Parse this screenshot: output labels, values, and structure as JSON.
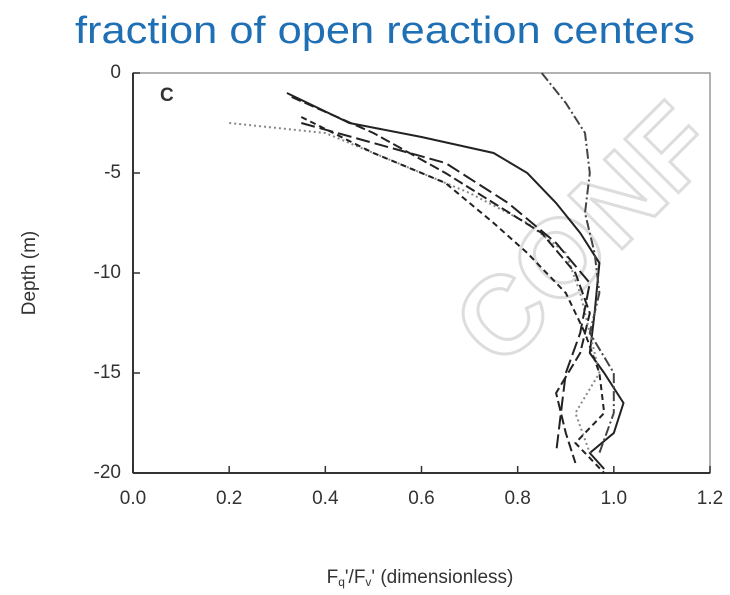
{
  "chart_data": {
    "type": "line",
    "title": "fraction of open reaction centers",
    "panel_label": "C",
    "watermark": "CONF",
    "x_label_parts": [
      "F",
      "q",
      "'/F",
      "v",
      "' (dimensionless)"
    ],
    "y_label": "Depth (m)",
    "xlim": [
      0,
      1.2
    ],
    "ylim": [
      -20,
      0
    ],
    "xticks": [
      {
        "value": 0,
        "label": "0.0"
      },
      0.2,
      0.4,
      0.6,
      0.8,
      {
        "value": 1,
        "label": "1.0"
      },
      1.2
    ],
    "yticks": [
      -20,
      -15,
      -10,
      -5,
      0
    ],
    "series": [
      {
        "color": "#222",
        "dash": "none",
        "x": [
          0.32,
          0.45,
          0.6,
          0.75,
          0.82,
          0.88,
          0.93,
          0.97,
          0.96,
          0.95,
          0.98,
          1.02,
          1.0,
          0.95,
          0.98
        ],
        "values": [
          -1,
          -2.5,
          -3.2,
          -4,
          -5,
          -6.5,
          -8,
          -9.5,
          -12,
          -14,
          -15,
          -16.5,
          -18,
          -19,
          -19.8
        ]
      },
      {
        "color": "#888",
        "dash": "2 3",
        "x": [
          0.2,
          0.4,
          0.55,
          0.7,
          0.82,
          0.9,
          0.93,
          0.95,
          0.97,
          0.92,
          0.95
        ],
        "values": [
          -2.5,
          -3,
          -4.5,
          -6,
          -7.5,
          -9,
          -11,
          -13,
          -15,
          -17,
          -19
        ]
      },
      {
        "color": "#222",
        "dash": "10 4",
        "x": [
          0.33,
          0.5,
          0.65,
          0.75,
          0.85,
          0.92,
          0.95,
          0.93,
          0.88,
          0.9,
          0.92
        ],
        "values": [
          -1.2,
          -3,
          -5,
          -6.5,
          -8,
          -10,
          -12,
          -14,
          -16,
          -18,
          -19.5
        ]
      },
      {
        "color": "#222",
        "dash": "6 4",
        "x": [
          0.35,
          0.5,
          0.65,
          0.75,
          0.82,
          0.9,
          0.94,
          0.97,
          0.98,
          0.92,
          0.98
        ],
        "values": [
          -2.2,
          -4,
          -5.5,
          -7.5,
          -9,
          -11,
          -13,
          -15,
          -17,
          -18.5,
          -20
        ]
      },
      {
        "color": "#222",
        "dash": "14 5",
        "x": [
          0.35,
          0.5,
          0.65,
          0.78,
          0.88,
          0.95,
          0.93,
          0.9,
          0.89,
          0.88
        ],
        "values": [
          -2.5,
          -3.5,
          -4.5,
          -6.5,
          -8.5,
          -10.5,
          -13,
          -15,
          -17,
          -19
        ]
      },
      {
        "color": "#444",
        "dash": "10 3 2 3",
        "x": [
          0.85,
          0.9,
          0.94,
          0.95,
          0.94,
          0.96,
          0.97,
          0.95,
          1.0,
          1.0,
          0.97
        ],
        "values": [
          0,
          -1.5,
          -3,
          -5,
          -7,
          -9,
          -11,
          -13,
          -15,
          -17,
          -19
        ]
      }
    ]
  }
}
